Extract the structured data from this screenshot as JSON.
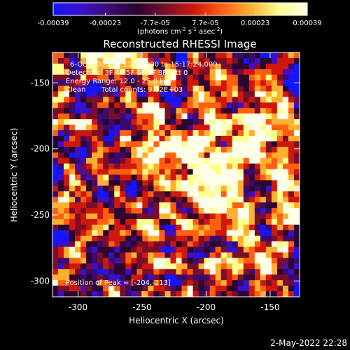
{
  "chart_data": {
    "type": "heatmap",
    "title": "Reconstructed RHESSI Image",
    "xlabel": "Heliocentric X (arcsec)",
    "ylabel": "Heliocentric Y (arcsec)",
    "xlim": [
      -320,
      -127
    ],
    "ylim": [
      -312,
      -127
    ],
    "x_ticks": [
      -300,
      -250,
      -200,
      -150
    ],
    "y_ticks": [
      -150,
      -200,
      -250,
      -300
    ],
    "colorbar": {
      "min": -0.00039,
      "max": 0.00039,
      "ticks": [
        "-0.00039",
        "-0.00023",
        "-7.7e-05",
        "7.7e-05",
        "0.00023",
        "0.00039"
      ],
      "tick_values": [
        -0.00039,
        -0.00023,
        -7.7e-05,
        7.7e-05,
        0.00023,
        0.00039
      ],
      "unit_label": {
        "prefix": "(photons cm",
        "exp1": "-2",
        "mid1": " s",
        "exp2": "-1",
        "mid2": " asec",
        "exp3": "-2",
        "suffix": ")"
      },
      "colors": [
        "#1414ff",
        "#3a10c8",
        "#3a0a70",
        "#2a0630",
        "#7a0e2a",
        "#d0180a",
        "#ff6010",
        "#ffb030",
        "#ffff90",
        "#ffffe8"
      ]
    },
    "annotations": {
      "time_range": "6-Oct-2005 15:11:24.000 to 15:17:24.000",
      "detectors": "Detectors: 3F 4F 5F 6F 7F 8F, Att 0",
      "energy_range": "Energy Range: 12.0 - 25.0 keV",
      "method": "Clean",
      "total_counts": "Total counts: 9.32E+03",
      "peak_position": "Position of Peak = [-204,-213]"
    },
    "peak": {
      "x": -204,
      "y": -213
    },
    "grid": false,
    "legend": "colorbar-top"
  },
  "footer": {
    "timestamp": "2-May-2022 22:28"
  }
}
